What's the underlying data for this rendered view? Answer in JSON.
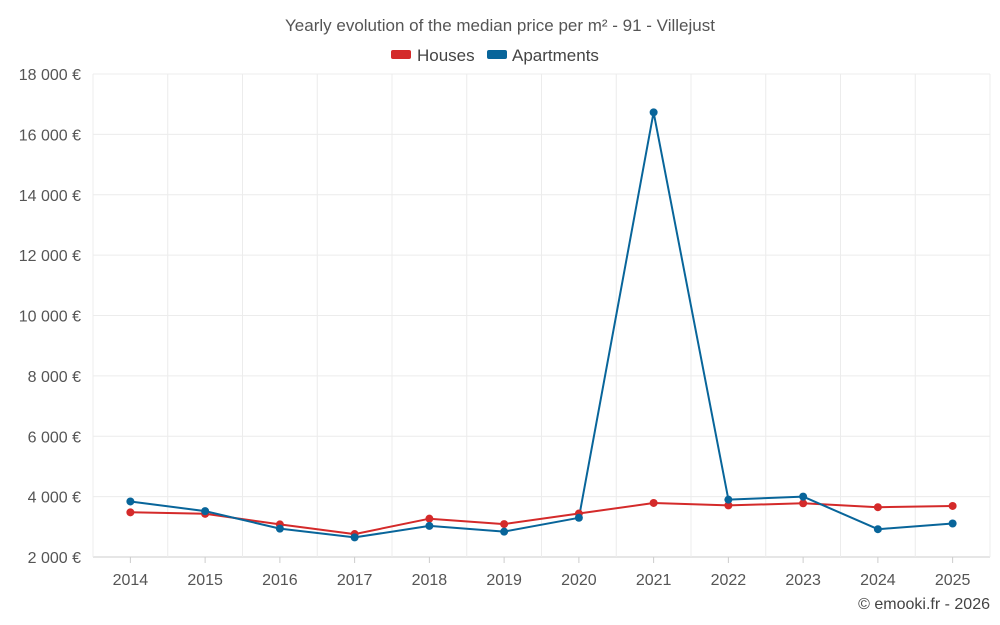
{
  "chart_data": {
    "type": "line",
    "title": "Yearly evolution of the median price per m² - 91 - Villejust",
    "categories": [
      "2014",
      "2015",
      "2016",
      "2017",
      "2018",
      "2019",
      "2020",
      "2021",
      "2022",
      "2023",
      "2024",
      "2025"
    ],
    "series": [
      {
        "name": "Houses",
        "color": "#d42a2a",
        "values": [
          3480,
          3430,
          3080,
          2760,
          3270,
          3090,
          3440,
          3790,
          3710,
          3780,
          3650,
          3690
        ]
      },
      {
        "name": "Apartments",
        "color": "#08659a",
        "values": [
          3840,
          3520,
          2940,
          2650,
          3030,
          2840,
          3300,
          16730,
          3900,
          4000,
          2920,
          3110
        ]
      }
    ],
    "ylim": [
      2000,
      18000
    ],
    "yticks": [
      2000,
      4000,
      6000,
      8000,
      10000,
      12000,
      14000,
      16000,
      18000
    ],
    "ytick_labels": [
      "2 000 €",
      "4 000 €",
      "6 000 €",
      "8 000 €",
      "10 000 €",
      "12 000 €",
      "14 000 €",
      "16 000 €",
      "18 000 €"
    ],
    "xlabel": "",
    "ylabel": "",
    "legend_position": "top-center",
    "grid": true
  },
  "credit": "© emooki.fr - 2026"
}
